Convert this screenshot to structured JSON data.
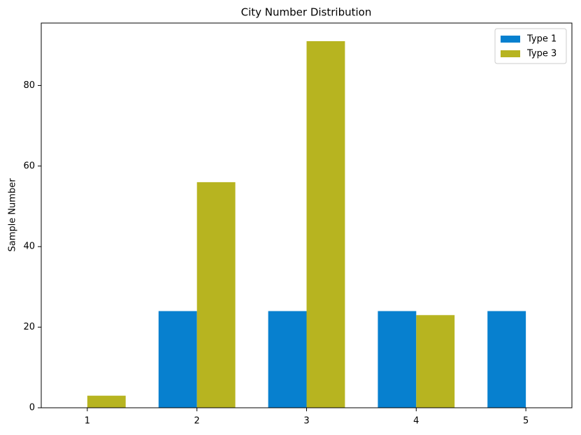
{
  "chart_data": {
    "type": "bar",
    "title": "City Number Distribution",
    "y_label": "Sample Number",
    "categories": [
      "1",
      "2",
      "3",
      "4",
      "5"
    ],
    "series": [
      {
        "name": "Type 1",
        "color": "#0780cf",
        "values": [
          0,
          24,
          24,
          24,
          24
        ]
      },
      {
        "name": "Type 3",
        "color": "#b7b420",
        "values": [
          3,
          56,
          91,
          23,
          0
        ]
      }
    ],
    "ylim": [
      0,
      95.5
    ],
    "yticks": [
      0,
      20,
      40,
      60,
      80
    ],
    "legend": "upper right"
  }
}
